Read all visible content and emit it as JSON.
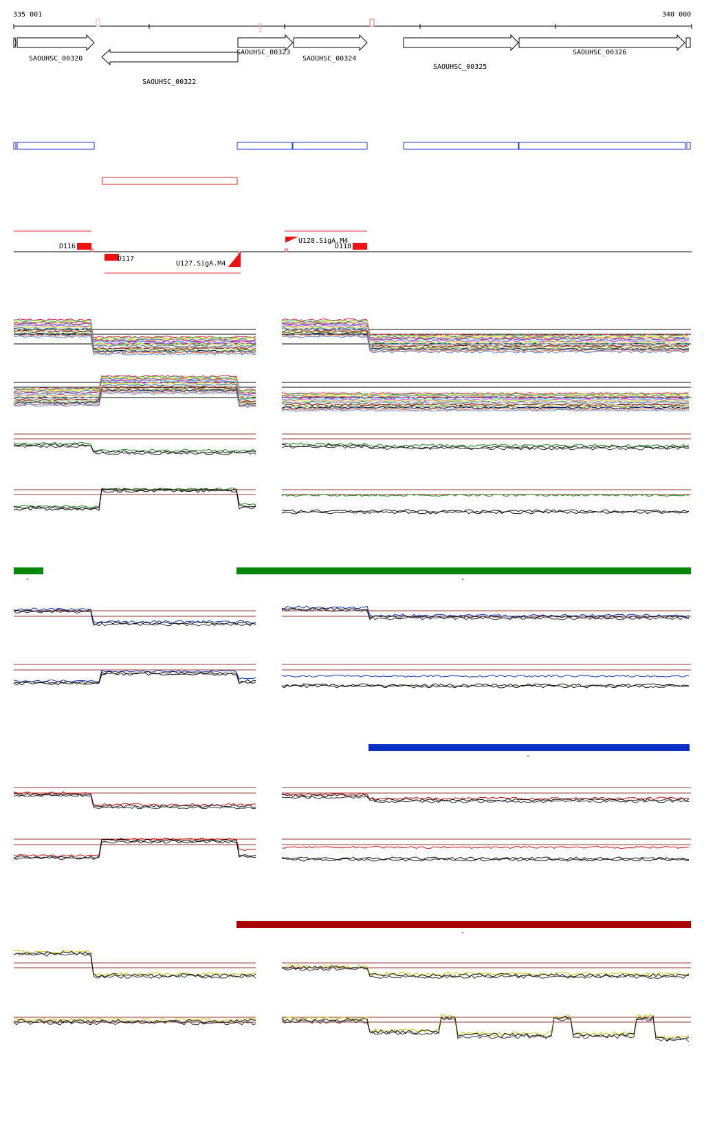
{
  "ruler": {
    "start_label": "335 001",
    "end_label": "340 000"
  },
  "genes": [
    {
      "name": "",
      "strand": "+"
    },
    {
      "name": "SAOUHSC_00320",
      "strand": "+"
    },
    {
      "name": "SAOUHSC_00322",
      "strand": "-"
    },
    {
      "name": "SAOUHSC_00323",
      "strand": "+"
    },
    {
      "name": "SAOUHSC_00324",
      "strand": "+"
    },
    {
      "name": "SAOUHSC_00325",
      "strand": "+"
    },
    {
      "name": "SAOUHSC_00326",
      "strand": "+"
    }
  ],
  "features": {
    "labels": [
      "D116",
      "D117",
      "U127.SigA.M4",
      "U128.SigA.M4",
      "D118"
    ]
  },
  "segments": {
    "green_bar_caption": "-",
    "blue_bar_caption": "-",
    "darkred_bar_caption": "-"
  },
  "colors": {
    "gene_outline": "#000000",
    "forward_segment": "#2233cc",
    "reverse_segment": "#dd2222",
    "feature_fill": "#ee1111",
    "green_condition": "#118811",
    "blue_condition": "#1133bb",
    "red_condition": "#cc1111",
    "yellow_condition": "#c8c800",
    "threshold_line": "#993333",
    "green_bar": "#078707",
    "blue_bar": "#0a2fc4",
    "darkred_bar": "#aa0000"
  }
}
